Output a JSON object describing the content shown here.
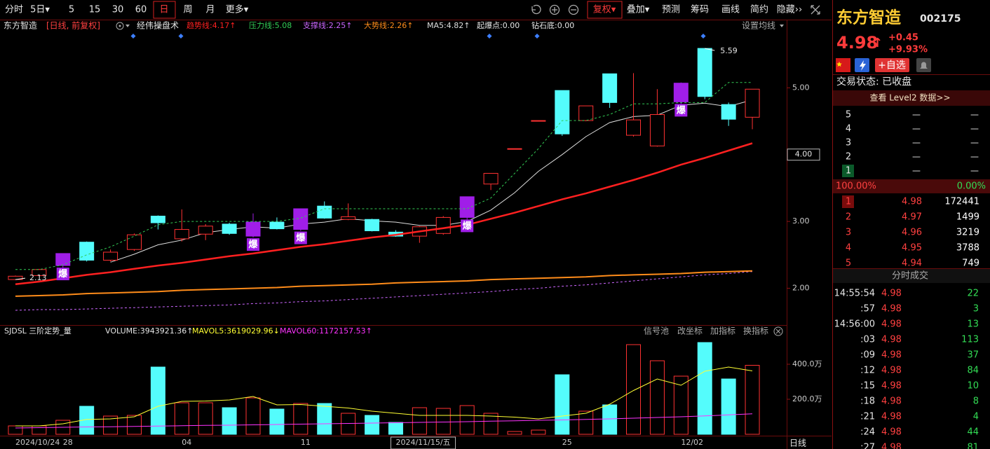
{
  "toolbar": {
    "left": [
      "分时",
      "5日▾",
      "5",
      "15",
      "30",
      "60",
      "日",
      "周",
      "月",
      "更多▾"
    ],
    "left_active": 6,
    "right": [
      "复权▾",
      "叠加▾",
      "预测",
      "筹码",
      "画线",
      "简约",
      "隐藏››"
    ],
    "right_active": 0
  },
  "chart_header": {
    "stock": "东方智造",
    "period": "[日线, 前复权]",
    "indicator": "经伟操盘术",
    "extra": [
      "起爆点:0.00",
      "钻石底:0.00"
    ],
    "ma_setting": "设置均线"
  },
  "volume_header": {
    "indicator": "SJDSL 三阶定势_量",
    "tools": [
      "信号池",
      "改坐标",
      "加指标",
      "换指标"
    ]
  },
  "footer": {
    "period_tab": "日线"
  },
  "chart_data": [
    {
      "type": "candlestick",
      "categories": [
        "2024/10/24",
        null,
        "28",
        null,
        null,
        null,
        null,
        "04",
        null,
        null,
        null,
        null,
        "11",
        null,
        null,
        null,
        "2024/11/15/五",
        null,
        null,
        null,
        null,
        null,
        null,
        "25",
        null,
        null,
        null,
        null,
        "12/02",
        null,
        null,
        null
      ],
      "open": [
        2.13,
        2.19,
        2.34,
        2.69,
        2.42,
        2.58,
        3.08,
        2.74,
        2.81,
        2.96,
        2.78,
        2.99,
        2.88,
        3.23,
        3.03,
        3.03,
        2.84,
        2.78,
        2.82,
        3.06,
        3.56,
        4.09,
        4.51,
        4.96,
        4.51,
        5.21,
        4.29,
        4.13,
        4.79,
        5.59,
        4.75,
        4.56
      ],
      "high": [
        2.19,
        2.29,
        2.52,
        2.7,
        2.58,
        2.82,
        3.09,
        3.18,
        2.96,
        2.98,
        3.12,
        3.06,
        3.19,
        3.3,
        3.27,
        3.04,
        2.87,
        2.93,
        3.08,
        3.37,
        3.72,
        4.09,
        4.51,
        4.96,
        4.73,
        5.21,
        5.22,
        4.98,
        5.08,
        5.59,
        4.78,
        4.98
      ],
      "low": [
        2.13,
        2.18,
        2.3,
        2.4,
        2.4,
        2.56,
        2.88,
        2.7,
        2.72,
        2.8,
        2.76,
        2.88,
        2.86,
        3.04,
        3.02,
        2.85,
        2.77,
        2.68,
        2.8,
        2.98,
        3.47,
        4.09,
        4.51,
        4.28,
        4.5,
        4.7,
        4.27,
        4.12,
        4.74,
        4.83,
        4.43,
        4.38
      ],
      "close": [
        2.18,
        2.28,
        2.52,
        2.42,
        2.54,
        2.8,
        2.98,
        2.88,
        2.93,
        2.82,
        2.99,
        2.89,
        3.19,
        3.05,
        3.07,
        2.86,
        2.78,
        2.92,
        3.06,
        3.37,
        3.72,
        4.09,
        4.51,
        4.31,
        4.73,
        4.78,
        4.52,
        4.6,
        5.07,
        4.87,
        4.53,
        4.98
      ],
      "up_color": "#ff3232",
      "down_color": "#54fcfc",
      "burst_color": "#a01ee8",
      "burst_labels": [
        {
          "index": 2,
          "text": "爆"
        },
        {
          "index": 10,
          "text": "爆"
        },
        {
          "index": 12,
          "text": "爆"
        },
        {
          "index": 19,
          "text": "爆"
        },
        {
          "index": 28,
          "text": "爆"
        }
      ],
      "low_label_index": 0,
      "high_label_index": 29,
      "ylim": [
        1.46,
        6.0
      ],
      "yticks": [
        {
          "value": 2,
          "label": "2.00"
        },
        {
          "value": 3,
          "label": "3.00"
        },
        {
          "value": 5,
          "label": "5.00"
        }
      ],
      "crosshair": {
        "value": 4,
        "label": "4.00"
      },
      "series": [
        {
          "legend": "趋势线:4.17↑",
          "color": "#ff2020",
          "width": 2.5,
          "dashed": false,
          "values": [
            2.06,
            2.1,
            2.15,
            2.2,
            2.24,
            2.29,
            2.34,
            2.38,
            2.43,
            2.48,
            2.52,
            2.57,
            2.62,
            2.66,
            2.71,
            2.76,
            2.8,
            2.85,
            2.9,
            2.95,
            3.04,
            3.13,
            3.23,
            3.33,
            3.42,
            3.52,
            3.62,
            3.73,
            3.85,
            3.95,
            4.06,
            4.17
          ]
        },
        {
          "legend": "压力线:5.08",
          "color": "#33cc55",
          "width": 1,
          "dashed": true,
          "values": [
            2.28,
            2.28,
            2.35,
            2.5,
            2.62,
            2.78,
            2.95,
            3.0,
            3.0,
            3.0,
            3.0,
            3.0,
            3.05,
            3.19,
            3.19,
            3.19,
            3.19,
            3.19,
            3.19,
            3.19,
            3.35,
            3.72,
            4.09,
            4.51,
            4.51,
            4.6,
            4.76,
            4.76,
            4.78,
            4.78,
            5.08,
            5.08
          ]
        },
        {
          "legend": "支撑线:2.25↑",
          "color": "#cc66ff",
          "width": 1,
          "dashed": true,
          "values": [
            1.67,
            1.68,
            1.68,
            1.69,
            1.7,
            1.71,
            1.72,
            1.73,
            1.74,
            1.75,
            1.77,
            1.78,
            1.8,
            1.81,
            1.83,
            1.85,
            1.87,
            1.89,
            1.91,
            1.93,
            1.95,
            1.98,
            2.0,
            2.03,
            2.05,
            2.08,
            2.11,
            2.14,
            2.17,
            2.2,
            2.22,
            2.25
          ]
        },
        {
          "legend": "大势线:2.26↑",
          "color": "#ff8c1a",
          "width": 2,
          "dashed": false,
          "values": [
            1.88,
            1.89,
            1.9,
            1.92,
            1.93,
            1.94,
            1.95,
            1.97,
            1.98,
            1.99,
            2.0,
            2.01,
            2.03,
            2.04,
            2.05,
            2.06,
            2.08,
            2.09,
            2.1,
            2.11,
            2.13,
            2.14,
            2.15,
            2.16,
            2.17,
            2.19,
            2.2,
            2.21,
            2.22,
            2.24,
            2.25,
            2.26
          ]
        },
        {
          "legend": "MA5:4.82↑",
          "color": "#dddddd",
          "width": 1,
          "dashed": false,
          "values": [
            null,
            null,
            null,
            null,
            2.39,
            2.51,
            2.65,
            2.72,
            2.83,
            2.88,
            2.92,
            2.9,
            2.96,
            2.99,
            3.04,
            3.01,
            2.99,
            2.94,
            2.94,
            3.0,
            3.17,
            3.43,
            3.75,
            4.0,
            4.27,
            4.48,
            4.57,
            4.59,
            4.74,
            4.77,
            4.72,
            4.82
          ]
        }
      ]
    },
    {
      "type": "bar",
      "volume_legend": "VOLUME:3943921.36↑",
      "values": [
        48,
        48,
        80,
        160,
        104,
        108,
        384,
        180,
        180,
        152,
        208,
        144,
        176,
        176,
        120,
        108,
        68,
        152,
        148,
        164,
        120,
        16,
        24,
        340,
        132,
        168,
        512,
        420,
        332,
        524,
        316,
        394
      ],
      "ylim": [
        0,
        552
      ],
      "yticks": [
        {
          "value": 200,
          "label": "200.0万"
        },
        {
          "value": 400,
          "label": "400.0万"
        }
      ],
      "series": [
        {
          "legend": "MAVOL5:3619029.96↓",
          "color": "#ffff33",
          "values": [
            48,
            48,
            60,
            85,
            88,
            100,
            160,
            188,
            190,
            196,
            216,
            168,
            170,
            160,
            150,
            132,
            120,
            108,
            108,
            108,
            104,
            98,
            88,
            104,
            120,
            172,
            250,
            316,
            280,
            360,
            384,
            362
          ]
        },
        {
          "legend": "MAVOL60:1172157.53↑",
          "color": "#ff33ff",
          "values": [
            36,
            38,
            40,
            42,
            43,
            45,
            47,
            49,
            51,
            52,
            54,
            56,
            58,
            60,
            62,
            64,
            66,
            68,
            70,
            72,
            75,
            77,
            80,
            82,
            85,
            88,
            92,
            96,
            100,
            105,
            111,
            117
          ]
        }
      ]
    }
  ],
  "quote": {
    "name": "东方智造",
    "code": "002175",
    "price": "4.98",
    "price_arrow": "↑",
    "change": "+0.45",
    "change_pct": "+9.93%",
    "add_watch": "+自选",
    "status": "交易状态: 已收盘",
    "level2": "查看 Level2 数据>>",
    "sell": [
      {
        "level": "5",
        "price": "—",
        "volume": "—"
      },
      {
        "level": "4",
        "price": "—",
        "volume": "—"
      },
      {
        "level": "3",
        "price": "—",
        "volume": "—"
      },
      {
        "level": "2",
        "price": "—",
        "volume": "—"
      },
      {
        "level": "1",
        "price": "—",
        "volume": "—"
      }
    ],
    "ratio": {
      "buy": "100.00%",
      "sell": "0.00%"
    },
    "buy": [
      {
        "level": "1",
        "price": "4.98",
        "volume": "172441"
      },
      {
        "level": "2",
        "price": "4.97",
        "volume": "1499"
      },
      {
        "level": "3",
        "price": "4.96",
        "volume": "3219"
      },
      {
        "level": "4",
        "price": "4.95",
        "volume": "3788"
      },
      {
        "level": "5",
        "price": "4.94",
        "volume": "749"
      }
    ],
    "trades_title": "分时成交",
    "trades": [
      {
        "time": "14:55:54",
        "price": "4.98",
        "volume": "22"
      },
      {
        "time": ":57",
        "price": "4.98",
        "volume": "3"
      },
      {
        "time": "14:56:00",
        "price": "4.98",
        "volume": "13"
      },
      {
        "time": ":03",
        "price": "4.98",
        "volume": "113"
      },
      {
        "time": ":09",
        "price": "4.98",
        "volume": "37"
      },
      {
        "time": ":12",
        "price": "4.98",
        "volume": "84"
      },
      {
        "time": ":15",
        "price": "4.98",
        "volume": "10"
      },
      {
        "time": ":18",
        "price": "4.98",
        "volume": "8"
      },
      {
        "time": ":21",
        "price": "4.98",
        "volume": "4"
      },
      {
        "time": ":24",
        "price": "4.98",
        "volume": "44"
      },
      {
        "time": ":27",
        "price": "4.98",
        "volume": "81"
      }
    ]
  }
}
